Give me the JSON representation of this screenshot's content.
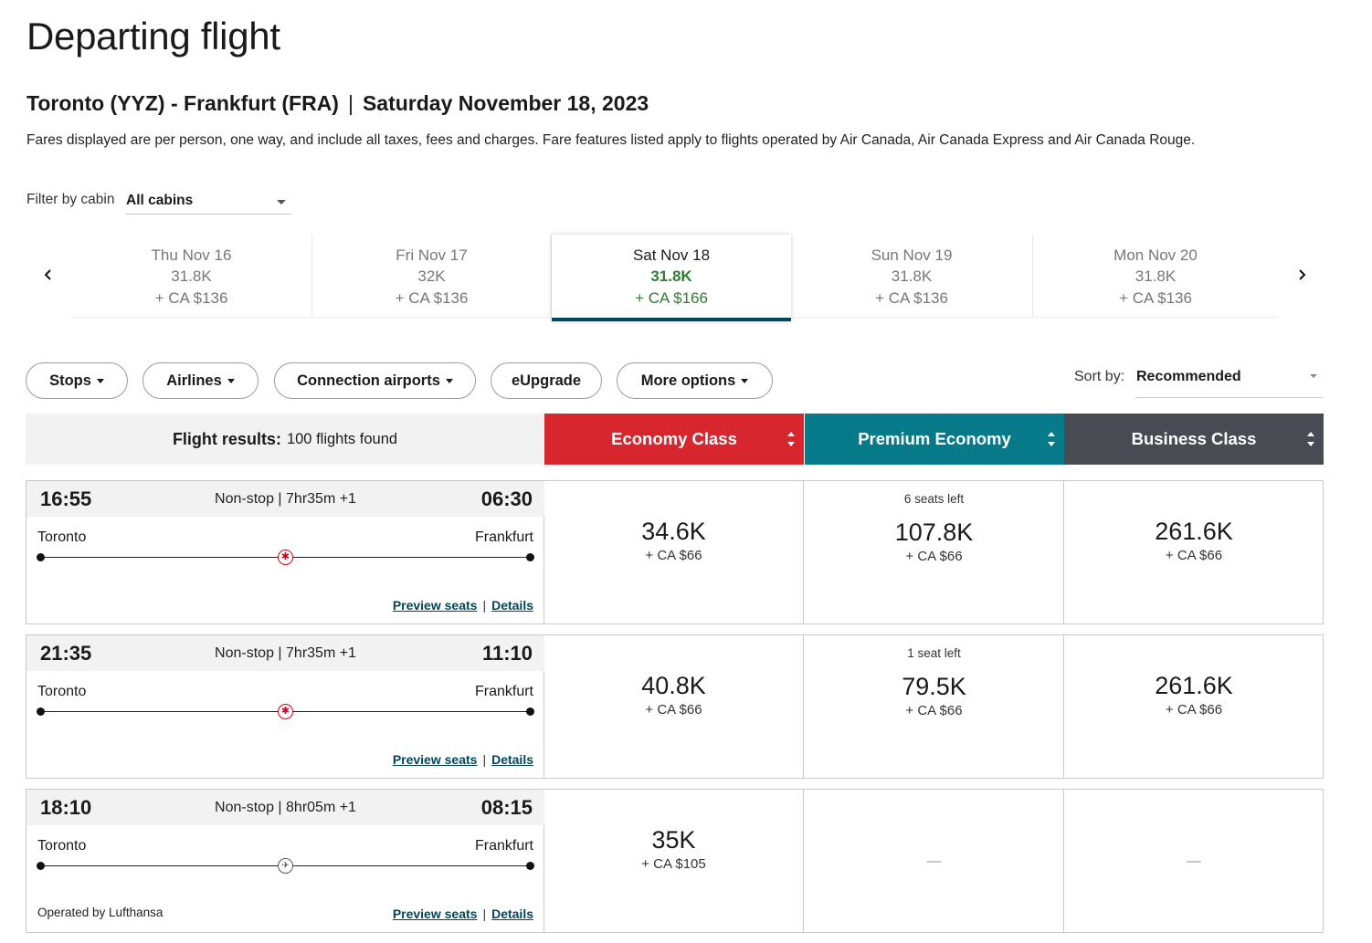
{
  "page_title": "Departing flight",
  "route": {
    "origin": "Toronto (YYZ) - Frankfurt (FRA)",
    "separator": "|",
    "date": "Saturday November 18, 2023"
  },
  "disclaimer": "Fares displayed are per person, one way, and include all taxes, fees and charges. Fare features listed apply to flights operated by Air Canada, Air Canada Express and Air Canada Rouge.",
  "filter": {
    "label": "Filter by cabin",
    "value": "All cabins"
  },
  "dates": [
    {
      "day": "Thu Nov 16",
      "points": "31.8K",
      "cash": "+ CA $136"
    },
    {
      "day": "Fri Nov 17",
      "points": "32K",
      "cash": "+ CA $136"
    },
    {
      "day": "Sat Nov 18",
      "points": "31.8K",
      "cash": "+ CA $166",
      "selected": true
    },
    {
      "day": "Sun Nov 19",
      "points": "31.8K",
      "cash": "+ CA $136"
    },
    {
      "day": "Mon Nov 20",
      "points": "31.8K",
      "cash": "+ CA $136"
    }
  ],
  "filters": [
    "Stops",
    "Airlines",
    "Connection airports",
    "eUpgrade",
    "More options"
  ],
  "sort": {
    "label": "Sort by:",
    "value": "Recommended"
  },
  "results": {
    "label": "Flight results:",
    "count": "100 flights found"
  },
  "cabins": [
    {
      "name": "Economy Class",
      "color": "#d7262d"
    },
    {
      "name": "Premium Economy",
      "color": "#077a8a"
    },
    {
      "name": "Business Class",
      "color": "#484c52"
    }
  ],
  "links": {
    "preview": "Preview seats",
    "details": "Details",
    "separator": "|"
  },
  "flights": [
    {
      "depart": "16:55",
      "arrive": "06:30",
      "duration": "Non-stop | 7hr35m +1",
      "from": "Toronto",
      "to": "Frankfurt",
      "carrier": "air-canada",
      "operated": "",
      "economy": {
        "points": "34.6K",
        "cash": "+ CA $66"
      },
      "premium": {
        "seats": "6 seats left",
        "points": "107.8K",
        "cash": "+ CA $66"
      },
      "business": {
        "points": "261.6K",
        "cash": "+ CA $66"
      }
    },
    {
      "depart": "21:35",
      "arrive": "11:10",
      "duration": "Non-stop | 7hr35m +1",
      "from": "Toronto",
      "to": "Frankfurt",
      "carrier": "air-canada",
      "operated": "",
      "economy": {
        "points": "40.8K",
        "cash": "+ CA $66"
      },
      "premium": {
        "seats": "1 seat left",
        "points": "79.5K",
        "cash": "+ CA $66"
      },
      "business": {
        "points": "261.6K",
        "cash": "+ CA $66"
      }
    },
    {
      "depart": "18:10",
      "arrive": "08:15",
      "duration": "Non-stop | 8hr05m +1",
      "from": "Toronto",
      "to": "Frankfurt",
      "carrier": "lufthansa",
      "operated": "Operated by Lufthansa",
      "economy": {
        "points": "35K",
        "cash": "+ CA $105"
      },
      "premium": {
        "unavailable": "—"
      },
      "business": {
        "unavailable": "—"
      }
    }
  ]
}
